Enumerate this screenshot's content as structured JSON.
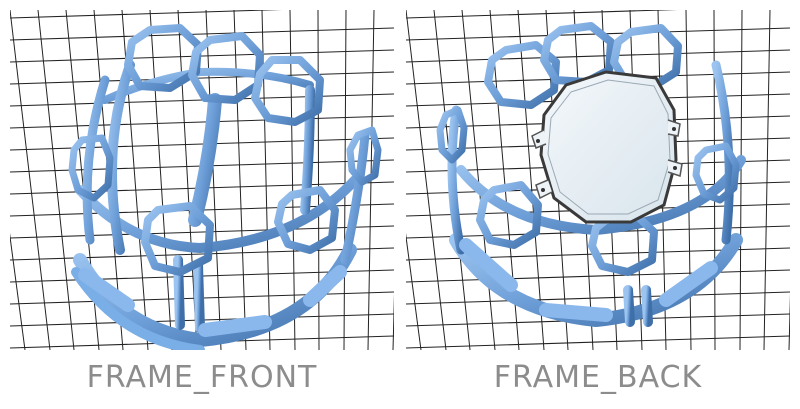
{
  "views": [
    {
      "caption": "FRAME_FRONT",
      "model_color": "#6e9fd8",
      "grid_color": "#222222"
    },
    {
      "caption": "FRAME_BACK",
      "model_color": "#6e9fd8",
      "grid_color": "#222222"
    }
  ]
}
